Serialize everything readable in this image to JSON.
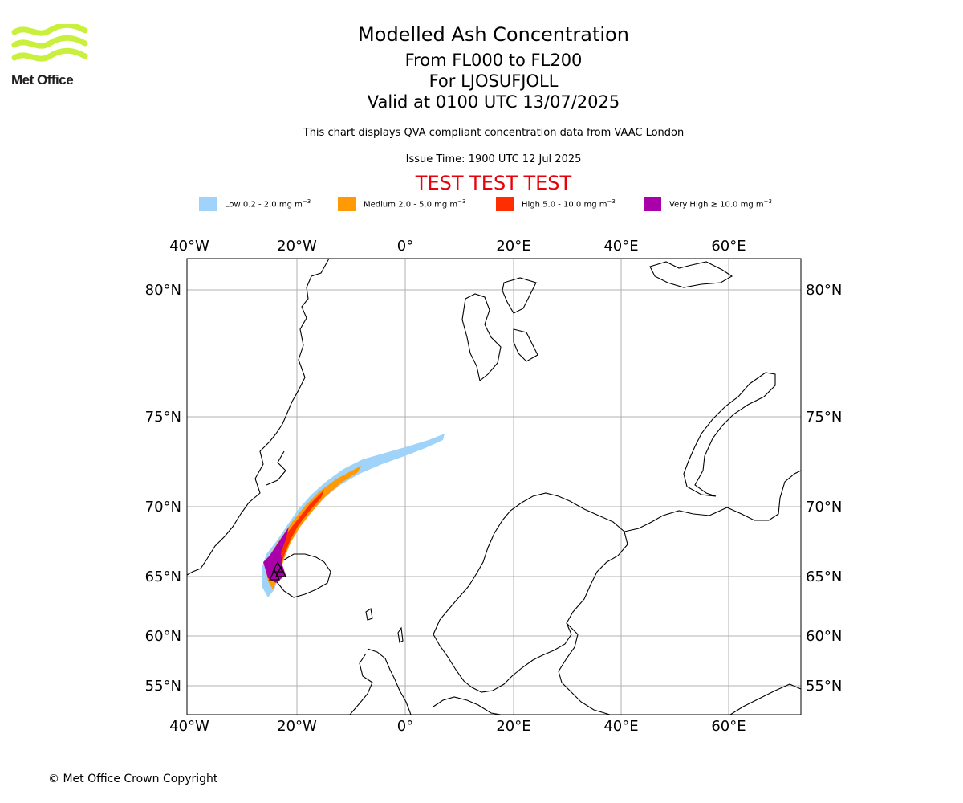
{
  "logo": {
    "text": "Met Office",
    "color": "#c8f03c"
  },
  "title": {
    "main": "Modelled Ash Concentration",
    "levels": "From FL000 to FL200",
    "volcano": "For LJOSUFJOLL",
    "valid": "Valid at 0100 UTC 13/07/2025"
  },
  "description": "This chart displays QVA compliant concentration data from VAAC London",
  "issue_time": "Issue Time: 1900 UTC 12 Jul 2025",
  "test_banner": "TEST TEST TEST",
  "legend": [
    {
      "label": "Low 0.2 - 2.0 mg m",
      "exp": "−3",
      "color": "#a0d3fa"
    },
    {
      "label": "Medium 2.0 - 5.0 mg m",
      "exp": "−3",
      "color": "#ff9a05"
    },
    {
      "label": "High 5.0 - 10.0 mg m",
      "exp": "−3",
      "color": "#ff2e00"
    },
    {
      "label": "Very High  ≥  10.0 mg m",
      "exp": "−3",
      "color": "#aa00aa"
    }
  ],
  "map": {
    "lon_labels": [
      "40°W",
      "20°W",
      "0°",
      "20°E",
      "40°E",
      "60°E"
    ],
    "lat_labels": [
      "80°N",
      "75°N",
      "70°N",
      "65°N",
      "60°N",
      "55°N"
    ]
  },
  "copyright": "© Met Office Crown Copyright"
}
